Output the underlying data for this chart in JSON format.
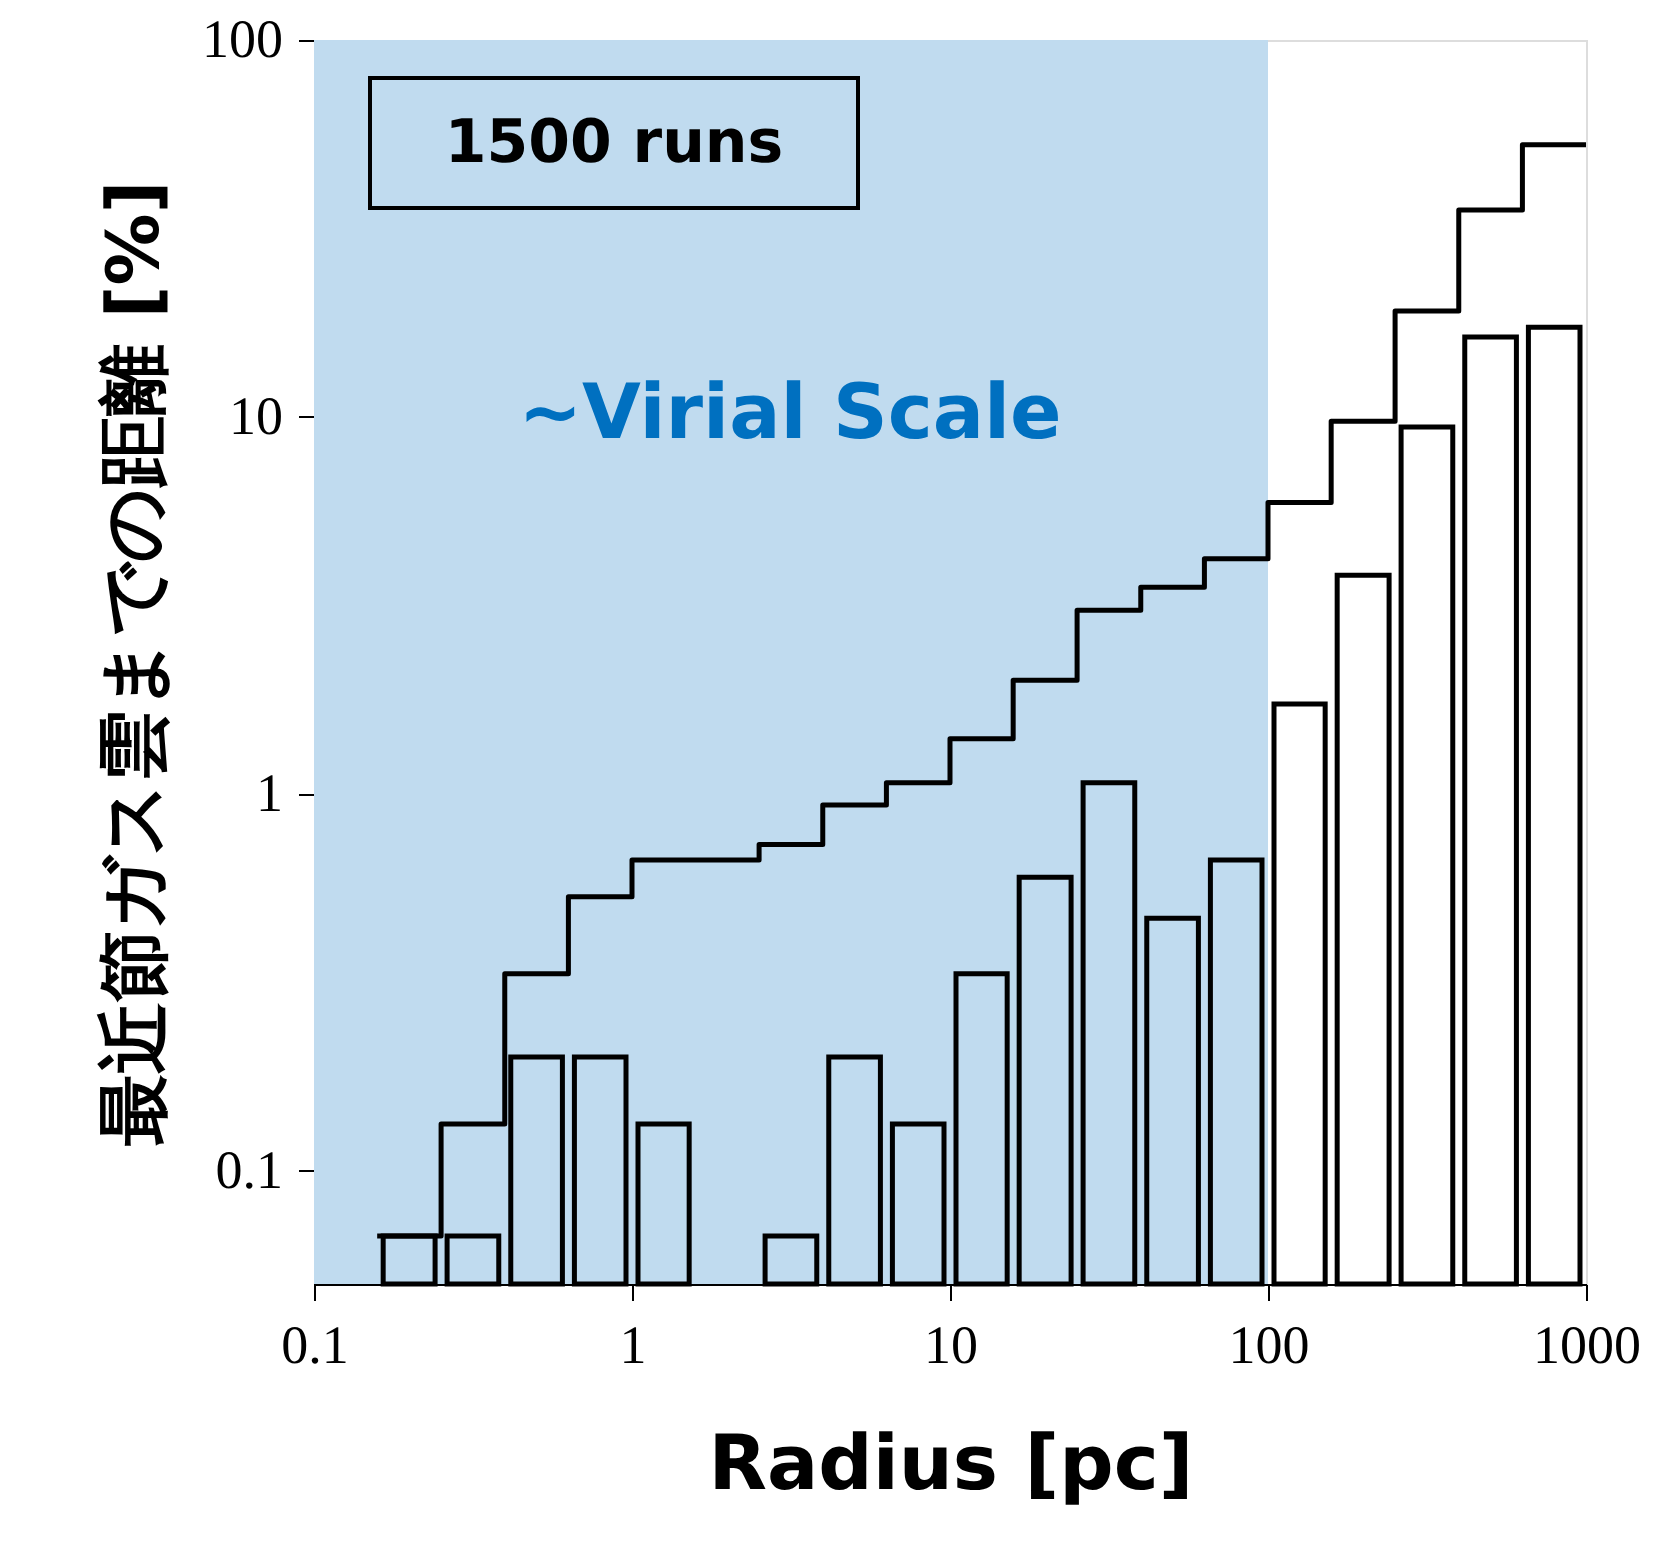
{
  "chart_data": {
    "type": "histogram",
    "xlabel": "Radius [pc]",
    "ylabel": "最近節ガス雲までの距離 [%]",
    "bins": [
      0.158,
      0.251,
      0.398,
      0.631,
      1,
      1.58,
      2.51,
      3.98,
      6.31,
      10,
      15.8,
      25.1,
      39.8,
      63.1,
      100,
      158,
      251,
      398,
      631,
      1000
    ],
    "series": [
      {
        "color": "#000000",
        "values": [
          0.067,
          0.067,
          0.2,
          0.2,
          0.133,
          null,
          0.067,
          0.2,
          0.133,
          0.333,
          0.6,
          1.07,
          0.467,
          0.667,
          1.73,
          3.8,
          9.4,
          16.3,
          17.3
        ]
      },
      {
        "type": "step",
        "color": "#000000",
        "x": [
          0.158,
          0.251,
          0.398,
          0.631,
          1,
          1.58,
          2.51,
          3.98,
          6.31,
          10,
          15.8,
          25.1,
          39.8,
          63.1,
          100,
          158,
          251,
          398,
          631,
          1000
        ],
        "values": [
          0.067,
          0.067,
          0.133,
          0.333,
          0.533,
          0.667,
          0.667,
          0.733,
          0.933,
          1.07,
          1.4,
          2.0,
          3.07,
          3.53,
          4.2,
          5.93,
          9.73,
          19.1,
          35.4,
          52.7
        ]
      }
    ],
    "bands": [
      {
        "axis": "x",
        "from": 0.1,
        "to": 100,
        "label": "~Virial Scale",
        "color": "#c0dbef"
      }
    ],
    "annotations": [
      "1500 runs"
    ],
    "log": "xy",
    "xlim": [
      0.1,
      1000
    ],
    "xticks": [
      0.1,
      1,
      10,
      100,
      1000
    ],
    "ylim": [
      0.05,
      100
    ],
    "yticks": [
      0.1,
      1,
      10,
      100
    ],
    "grid": false
  }
}
